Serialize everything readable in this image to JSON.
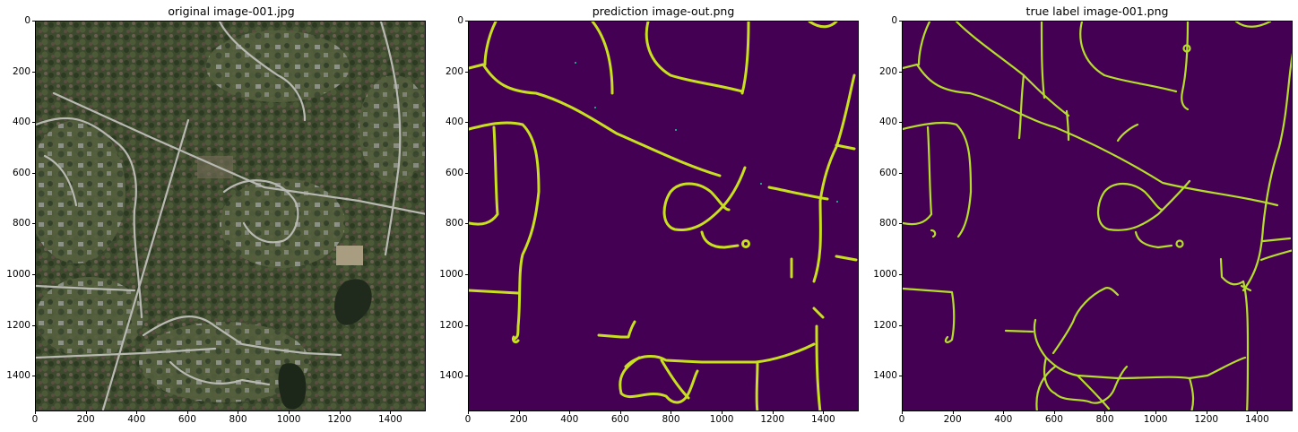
{
  "panels": [
    {
      "title": "original image-001.jpg"
    },
    {
      "title": "prediction image-out.png"
    },
    {
      "title": "true label image-001.png"
    }
  ],
  "axes": {
    "x_ticks": [
      "0",
      "200",
      "400",
      "600",
      "800",
      "1000",
      "1200",
      "1400"
    ],
    "y_ticks": [
      "0",
      "200",
      "400",
      "600",
      "800",
      "1000",
      "1200",
      "1400"
    ]
  },
  "colors": {
    "background_class": "#440154",
    "road_class": "#c8e020",
    "forest": "#3b4a2c",
    "road_satellite": "#b7b9b2"
  }
}
